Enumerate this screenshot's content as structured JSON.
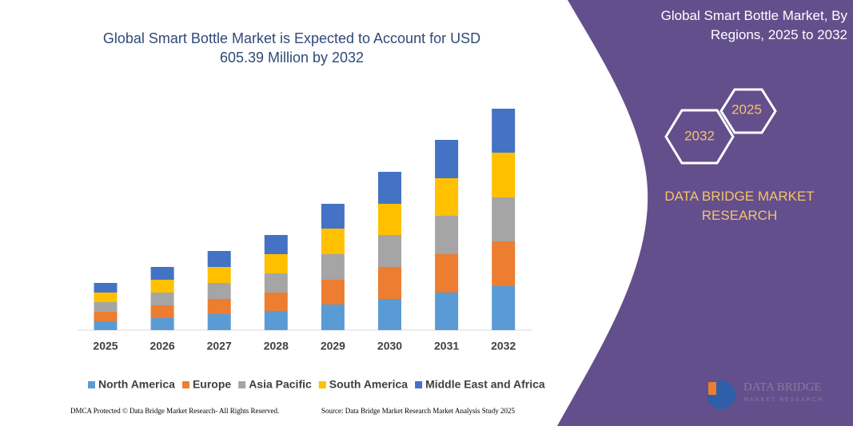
{
  "chart_data": {
    "type": "stacked_bar",
    "title": "Global Smart Bottle Market is Expected to Account for USD 605.39 Million by 2032",
    "categories": [
      "2025",
      "2026",
      "2027",
      "2028",
      "2029",
      "2030",
      "2031",
      "2032"
    ],
    "series": [
      {
        "name": "North America",
        "color": "#5b9bd5",
        "values": [
          11,
          15,
          20,
          24,
          32,
          39,
          47,
          55
        ]
      },
      {
        "name": "Europe",
        "color": "#ed7d31",
        "values": [
          12,
          16,
          19,
          23,
          31,
          40,
          48,
          56
        ]
      },
      {
        "name": "Asia Pacific",
        "color": "#a5a5a5",
        "values": [
          12,
          16,
          20,
          24,
          32,
          40,
          48,
          55
        ]
      },
      {
        "name": "South America",
        "color": "#ffc000",
        "values": [
          12,
          16,
          20,
          24,
          32,
          39,
          47,
          56
        ]
      },
      {
        "name": "Middle East and Africa",
        "color": "#4472c4",
        "values": [
          12,
          16,
          20,
          24,
          31,
          40,
          48,
          55
        ]
      }
    ]
  },
  "panel": {
    "title": "Global Smart Bottle Market, By Regions, 2025 to 2032",
    "hex_front": "2032",
    "hex_back": "2025",
    "brand": "DATA BRIDGE MARKET RESEARCH",
    "logo_name": "DATA BRIDGE",
    "logo_sub": "MARKET RESEARCH"
  },
  "footer": {
    "left": "DMCA Protected © Data Bridge Market Research- All Rights Reserved.",
    "right": "Source: Data Bridge Market Research Market Analysis Study 2025"
  }
}
